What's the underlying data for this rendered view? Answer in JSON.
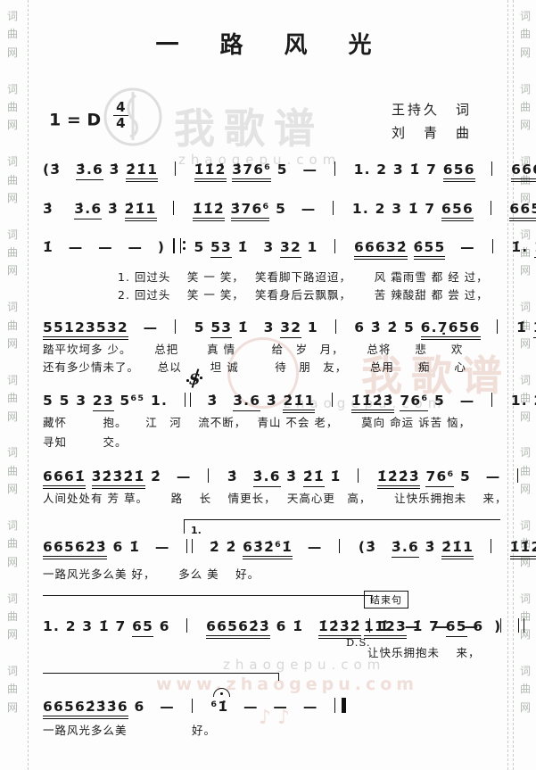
{
  "header": {
    "title": "一　路　风　光",
    "key": "1 = D",
    "time_top": "4",
    "time_bottom": "4",
    "lyricist": "王持久　词",
    "composer": "刘　青　曲"
  },
  "labels": {
    "volta1": "1.",
    "ending": "结束句",
    "ds": "D.S.",
    "segno": "S"
  },
  "watermarks": {
    "side": "词曲网",
    "brand": "我歌谱",
    "site": "zhaogepu.com",
    "site_www": "www.zhaogepu.com",
    "notes": "♪ ♪"
  },
  "systems": [
    {
      "music": "(3̇　3̇.6 3̇ 2̇1̇1　|　1̇1̇2̇ 3̇76⁶ 5　—　|　1. 2 3 1̇ 7 656　|　6661̇3̇2̇3̇2̇1̇2̇　—　|",
      "lyrics": []
    },
    {
      "music": "3̇　 3̇.6 3̇ 2̇1̇1　|　1̇1̇2̇ 3̇76⁶ 5　—　|　1. 2 3 1̇ 7 656　|　66562̇3̇6 1̇　1̇2̇3̇2̇ |",
      "lyrics": []
    },
    {
      "music": "1̇　—　—　—　) ||: 5 53 1̇　3 32 1　|　66632̇ 6̇55　—　|　1̇. 1̇2̇ 1̇ 1̇665 4　|",
      "lyrics": [
        "1. 回过头　 笑 一 笑，　 笑看脚下路迢迢，　　 风 霜雨雪 都 经 过，",
        "2. 回过头　 笑 一 笑，　 笑看身后云飘飘，　　 苦 辣酸甜 都 尝 过，"
      ]
    },
    {
      "music": "55123532　—　|　5 53 1̇　3 32 1　|　6 3̇ 2̇ 5 6.7̣656　|　1̇ 1̇6 56 1̇1̇ 32 3　|",
      "lyrics": [
        "踏平坎坷多 少。　　 总把　　 真 情　　　给　岁　月，　　 总将　　悲　　欢",
        "还有多少情未了。　　总以　　 坦 诚　　　待　朋　友，　　 总用　　痴　　心"
      ]
    },
    {
      "music": "5 5 3 23 5⁶⁵ 1.　||　3̇　3̇.6 3̇ 2̇1̇1　|　1̇1̇2̇3̇ 76⁶ 5　—　|　1. 2 3 1̇ 7 65 6　|",
      "lyrics": [
        "藏怀　　　抱。　　江　河　 流不断，　 青山 不会 老，　　 莫向 命运 诉苦 恼，",
        "寻知　　　交。"
      ]
    },
    {
      "music": "6661̇ 3̇2̇3̇2̇1̇ 2̇　—　|　3̇　3̇.6 3̇ 2̇1̇ 1̇　|　1̇2̇2̇3̇ 76⁶ 5　—　|　1123 1̇ 7 65 6　|",
      "lyrics": [
        "人间处处有 芳 草。　　 路　 长　 情更长，　 天高心更　高，　　 让快乐拥抱未　 来，"
      ]
    },
    {
      "music": "66562̇3̇ 6 1̇　—　||　2̇ 2̇ 63̇2̇⁶1̇　—　|　(3̇　3̇.6 3̇ 2̇1̇1　|　1̇1̇2̇3̇76⁶ 5　—　|",
      "lyrics": [
        "一路风光多么美 好，　　 多么 美　 好。"
      ]
    },
    {
      "music": "1. 2 3 1̇ 7 65 6　|　66562̇3̇ 6 1̇　1̇2̇3̇2̇ | 1̇　—　—　—　)　||",
      "music_end": "1123 1̇ 7 65 6　|",
      "lyrics": [
        "让快乐拥抱未　 来，"
      ]
    },
    {
      "music_pre": "66562̇3̇3̇6 6　—　|　⁶",
      "music_note": "1̇",
      "music_post": "　—　—　—　|||",
      "lyrics": [
        "一路风光多么美　　　　　 好。"
      ]
    }
  ]
}
